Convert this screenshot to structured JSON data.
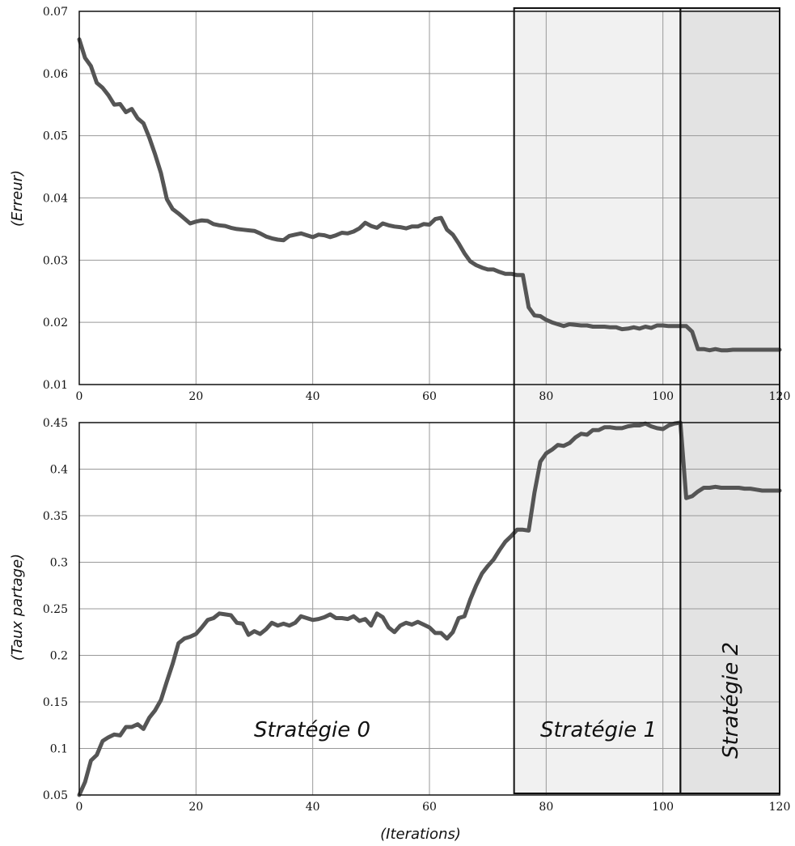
{
  "chart_data": [
    {
      "type": "line",
      "title": "",
      "xlabel": "",
      "ylabel": "(Erreur)",
      "xlim": [
        0,
        120
      ],
      "ylim": [
        0.01,
        0.07
      ],
      "xticks": [
        "0",
        "20",
        "40",
        "60",
        "80",
        "100",
        "120"
      ],
      "yticks": [
        "0.01",
        "0.02",
        "0.03",
        "0.04",
        "0.05",
        "0.06",
        "0.07"
      ],
      "grid": true,
      "series": [
        {
          "x": [
            0,
            1,
            2,
            3,
            4,
            5,
            6,
            7,
            8,
            9,
            10,
            11,
            12,
            13,
            14,
            15,
            16,
            17,
            18,
            19,
            20,
            21,
            22,
            23,
            24,
            25,
            26,
            27,
            28,
            29,
            30,
            31,
            32,
            33,
            34,
            35,
            36,
            37,
            38,
            39,
            40,
            41,
            42,
            43,
            44,
            45,
            46,
            47,
            48,
            49,
            50,
            51,
            52,
            53,
            54,
            55,
            56,
            57,
            58,
            59,
            60,
            61,
            62,
            63,
            64,
            65,
            66,
            67,
            68,
            69,
            70,
            71,
            72,
            73,
            74,
            75,
            76,
            77,
            78,
            79,
            80,
            81,
            82,
            83,
            84,
            85,
            86,
            87,
            88,
            89,
            90,
            91,
            92,
            93,
            94,
            95,
            96,
            97,
            98,
            99,
            100,
            101,
            102,
            103,
            104,
            105,
            106,
            107,
            108,
            109,
            110,
            111,
            112,
            113,
            114,
            115,
            116,
            117,
            118,
            119,
            120
          ],
          "values": [
            0.0655,
            0.0625,
            0.0612,
            0.0585,
            0.0577,
            0.0565,
            0.055,
            0.0551,
            0.0538,
            0.0543,
            0.0528,
            0.052,
            0.0497,
            0.047,
            0.044,
            0.0398,
            0.0382,
            0.0375,
            0.0367,
            0.0359,
            0.0362,
            0.0364,
            0.0363,
            0.0358,
            0.0356,
            0.0355,
            0.0352,
            0.035,
            0.0349,
            0.0348,
            0.0347,
            0.0343,
            0.0338,
            0.0335,
            0.0333,
            0.0332,
            0.0339,
            0.0341,
            0.0343,
            0.034,
            0.0337,
            0.0341,
            0.034,
            0.0337,
            0.034,
            0.0344,
            0.0343,
            0.0346,
            0.0351,
            0.036,
            0.0355,
            0.0352,
            0.0359,
            0.0356,
            0.0354,
            0.0353,
            0.0351,
            0.0354,
            0.0354,
            0.0358,
            0.0357,
            0.0366,
            0.0368,
            0.0349,
            0.0341,
            0.0327,
            0.0311,
            0.0298,
            0.0292,
            0.0288,
            0.0285,
            0.0285,
            0.0281,
            0.0278,
            0.0278,
            0.0276,
            0.0276,
            0.0224,
            0.0211,
            0.021,
            0.0204,
            0.02,
            0.0197,
            0.0194,
            0.0197,
            0.0196,
            0.0195,
            0.0195,
            0.0193,
            0.0193,
            0.0193,
            0.0192,
            0.0192,
            0.0189,
            0.019,
            0.0192,
            0.019,
            0.0193,
            0.0191,
            0.0195,
            0.0195,
            0.0194,
            0.0194,
            0.0194,
            0.0194,
            0.0185,
            0.0157,
            0.0157,
            0.0155,
            0.0157,
            0.0155,
            0.0155,
            0.0156,
            0.0156,
            0.0156,
            0.0156,
            0.0156,
            0.0156,
            0.0156,
            0.0156,
            0.0156
          ]
        }
      ]
    },
    {
      "type": "line",
      "title": "",
      "xlabel": "(Iterations)",
      "ylabel": "(Taux partage)",
      "xlim": [
        0,
        120
      ],
      "ylim": [
        0.05,
        0.45
      ],
      "xticks": [
        "0",
        "20",
        "40",
        "60",
        "80",
        "100",
        "120"
      ],
      "yticks": [
        "0.05",
        "0.1",
        "0.15",
        "0.2",
        "0.25",
        "0.3",
        "0.35",
        "0.4",
        "0.45"
      ],
      "grid": true,
      "series": [
        {
          "x": [
            0,
            1,
            2,
            3,
            4,
            5,
            6,
            7,
            8,
            9,
            10,
            11,
            12,
            13,
            14,
            15,
            16,
            17,
            18,
            19,
            20,
            21,
            22,
            23,
            24,
            25,
            26,
            27,
            28,
            29,
            30,
            31,
            32,
            33,
            34,
            35,
            36,
            37,
            38,
            39,
            40,
            41,
            42,
            43,
            44,
            45,
            46,
            47,
            48,
            49,
            50,
            51,
            52,
            53,
            54,
            55,
            56,
            57,
            58,
            59,
            60,
            61,
            62,
            63,
            64,
            65,
            66,
            67,
            68,
            69,
            70,
            71,
            72,
            73,
            74,
            75,
            76,
            77,
            78,
            79,
            80,
            81,
            82,
            83,
            84,
            85,
            86,
            87,
            88,
            89,
            90,
            91,
            92,
            93,
            94,
            95,
            96,
            97,
            98,
            99,
            100,
            101,
            102,
            103,
            104,
            105,
            106,
            107,
            108,
            109,
            110,
            111,
            112,
            113,
            114,
            115,
            116,
            117,
            118,
            119,
            120
          ],
          "values": [
            0.05,
            0.064,
            0.087,
            0.093,
            0.108,
            0.112,
            0.115,
            0.114,
            0.123,
            0.123,
            0.126,
            0.121,
            0.133,
            0.141,
            0.152,
            0.172,
            0.191,
            0.213,
            0.218,
            0.22,
            0.223,
            0.23,
            0.238,
            0.24,
            0.245,
            0.244,
            0.243,
            0.235,
            0.234,
            0.222,
            0.226,
            0.223,
            0.228,
            0.235,
            0.232,
            0.234,
            0.232,
            0.235,
            0.242,
            0.24,
            0.238,
            0.239,
            0.241,
            0.244,
            0.24,
            0.24,
            0.239,
            0.242,
            0.237,
            0.239,
            0.232,
            0.245,
            0.241,
            0.23,
            0.225,
            0.232,
            0.235,
            0.233,
            0.236,
            0.233,
            0.23,
            0.224,
            0.224,
            0.218,
            0.225,
            0.24,
            0.242,
            0.26,
            0.275,
            0.288,
            0.296,
            0.303,
            0.313,
            0.322,
            0.328,
            0.335,
            0.335,
            0.334,
            0.375,
            0.408,
            0.417,
            0.421,
            0.426,
            0.425,
            0.428,
            0.434,
            0.438,
            0.437,
            0.442,
            0.442,
            0.445,
            0.445,
            0.444,
            0.444,
            0.446,
            0.447,
            0.447,
            0.449,
            0.446,
            0.444,
            0.443,
            0.447,
            0.449,
            0.45,
            0.369,
            0.371,
            0.376,
            0.38,
            0.38,
            0.381,
            0.38,
            0.38,
            0.38,
            0.38,
            0.379,
            0.379,
            0.378,
            0.377,
            0.377,
            0.377,
            0.377
          ]
        }
      ]
    }
  ],
  "strategies": [
    {
      "label": "Stratégie 0",
      "range": [
        0,
        74.5
      ],
      "fill": "#ffffff"
    },
    {
      "label": "Stratégie 1",
      "range": [
        74.5,
        103
      ],
      "fill": "#f1f1f1"
    },
    {
      "label": "Stratégie 2",
      "range": [
        103,
        120
      ],
      "fill": "#e3e3e3"
    }
  ],
  "colors": {
    "series": "#555555",
    "grid": "#999999",
    "frame": "#111111"
  }
}
